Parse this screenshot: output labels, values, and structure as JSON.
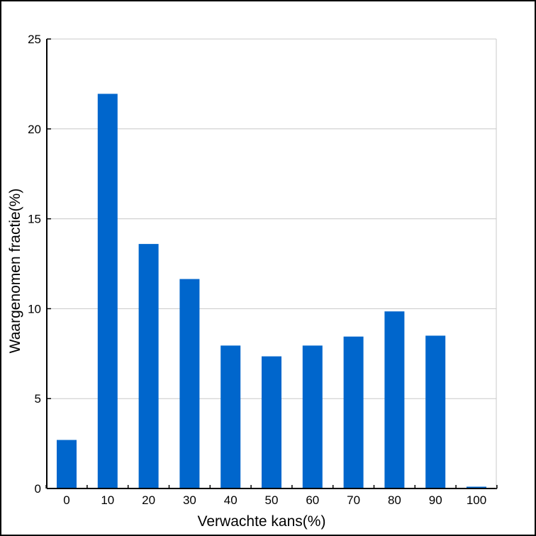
{
  "chart_data": {
    "type": "bar",
    "title": "",
    "xlabel": "Verwachte kans(%)",
    "ylabel": "Waargenomen fractie(%)",
    "categories": [
      "0",
      "10",
      "20",
      "30",
      "40",
      "50",
      "60",
      "70",
      "80",
      "90",
      "100"
    ],
    "values": [
      2.7,
      21.95,
      13.6,
      11.65,
      7.95,
      7.35,
      7.95,
      8.45,
      9.85,
      8.5,
      0.1
    ],
    "ylim": [
      0,
      25
    ],
    "yticks": [
      0,
      5,
      10,
      15,
      20,
      25
    ],
    "grid": true,
    "colors": {
      "bar": "#0066CC",
      "grid": "#C8C8C8",
      "axis": "#000000"
    }
  }
}
